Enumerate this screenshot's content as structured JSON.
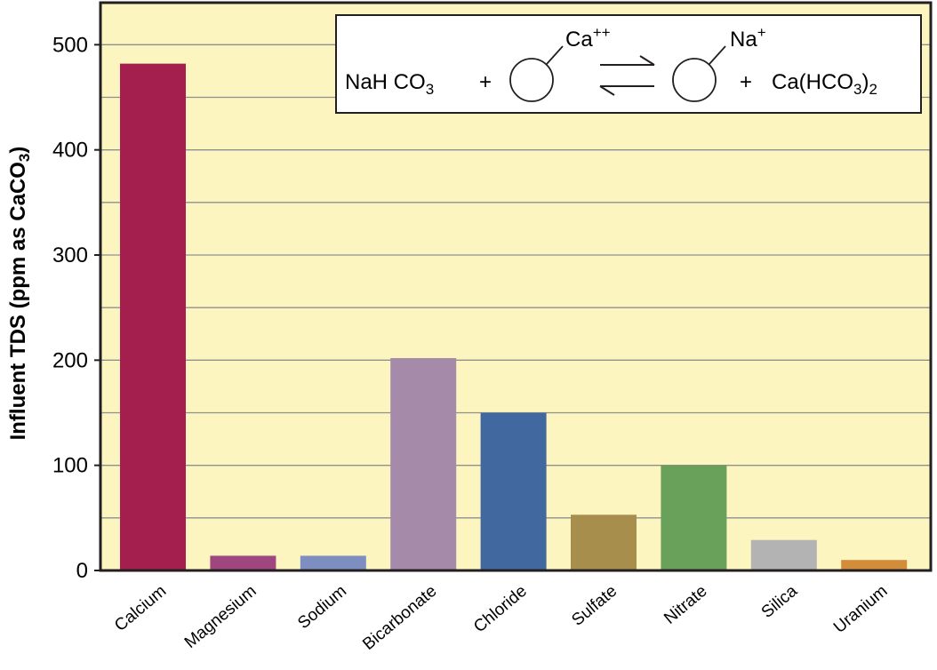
{
  "colors": {
    "plot_background": "#fdf5c0",
    "gridline": "#8f8f8f",
    "axis": "#231f20"
  },
  "equation": {
    "reactant": "NaH CO",
    "reactant_sub": "3",
    "plus1": "+",
    "resin_ion_left": "Ca",
    "resin_ion_left_sup": "++",
    "resin_ion_right": "Na",
    "resin_ion_right_sup": "+",
    "plus2": "+",
    "product": "Ca(HCO",
    "product_sub1": "3",
    "product_close": ")",
    "product_sub2": "2"
  },
  "chart_data": {
    "type": "bar",
    "categories": [
      "Calcium",
      "Magnesium",
      "Sodium",
      "Bicarbonate",
      "Chloride",
      "Sulfate",
      "Nitrate",
      "Silica",
      "Uranium"
    ],
    "values": [
      482,
      14,
      14,
      202,
      150,
      53,
      100,
      29,
      10
    ],
    "colors": [
      "#a51f4e",
      "#a0467f",
      "#7d8fc0",
      "#a68aa9",
      "#4268a0",
      "#a88e4c",
      "#69a05a",
      "#b4b3b4",
      "#d28c3a"
    ],
    "ylabel": "Influent TDS (ppm as CaCO",
    "ylabel_sub": "3",
    "ylabel_close": ")",
    "xlabel": "",
    "ylim": [
      0,
      540
    ],
    "yticks": [
      0,
      100,
      200,
      300,
      400,
      500
    ],
    "gridlines": [
      50,
      100,
      150,
      200,
      250,
      300,
      350,
      400,
      450,
      500
    ],
    "grid": true
  }
}
